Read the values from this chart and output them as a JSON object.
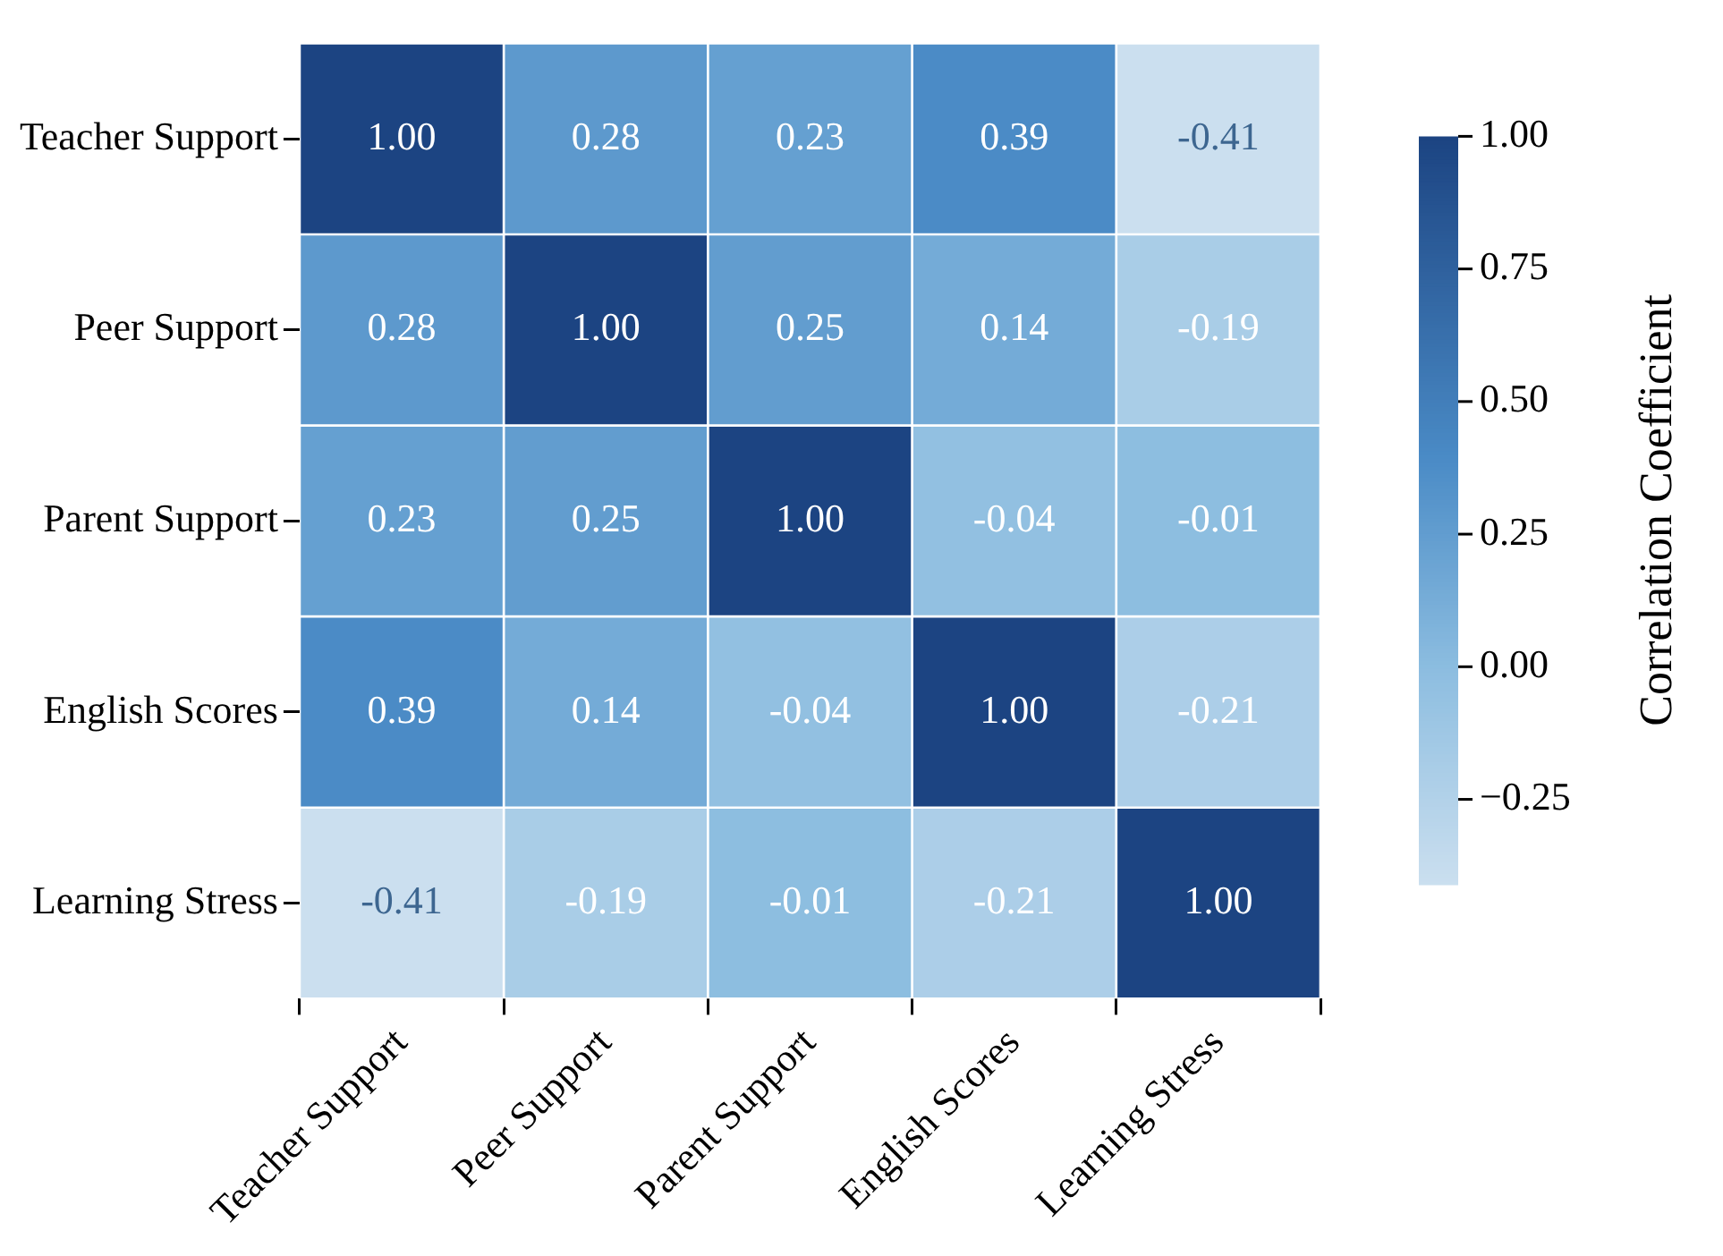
{
  "chart_data": {
    "type": "heatmap",
    "clabel": "Correlation Coefficient",
    "categories": [
      "Teacher Support",
      "Peer Support",
      "Parent Support",
      "English Scores",
      "Learning Stress"
    ],
    "y_categories": [
      "Teacher Support",
      "Peer Support",
      "Parent Support",
      "English Scores",
      "Learning Stress"
    ],
    "cells": [
      [
        1.0,
        0.28,
        0.23,
        0.39,
        -0.41
      ],
      [
        0.28,
        1.0,
        0.25,
        0.14,
        -0.19
      ],
      [
        0.23,
        0.25,
        1.0,
        -0.04,
        -0.01
      ],
      [
        0.39,
        0.14,
        -0.04,
        1.0,
        -0.21
      ],
      [
        -0.41,
        -0.19,
        -0.01,
        -0.21,
        1.0
      ]
    ],
    "cell_labels": [
      [
        "1.00",
        "0.28",
        "0.23",
        "0.39",
        "-0.41"
      ],
      [
        "0.28",
        "1.00",
        "0.25",
        "0.14",
        "-0.19"
      ],
      [
        "0.23",
        "0.25",
        "1.00",
        "-0.04",
        "-0.01"
      ],
      [
        "0.39",
        "0.14",
        "-0.04",
        "1.00",
        "-0.21"
      ],
      [
        "-0.41",
        "-0.19",
        "-0.01",
        "-0.21",
        "1.00"
      ]
    ],
    "clim": [
      -0.41,
      1.0
    ],
    "cticks": [
      {
        "value": -0.25,
        "label": "−0.25"
      },
      {
        "value": 0,
        "label": "0.00"
      },
      {
        "value": 0.25,
        "label": "0.25"
      },
      {
        "value": 0.5,
        "label": "0.50"
      },
      {
        "value": 0.75,
        "label": "0.75"
      },
      {
        "value": 1,
        "label": "1.00"
      }
    ]
  }
}
